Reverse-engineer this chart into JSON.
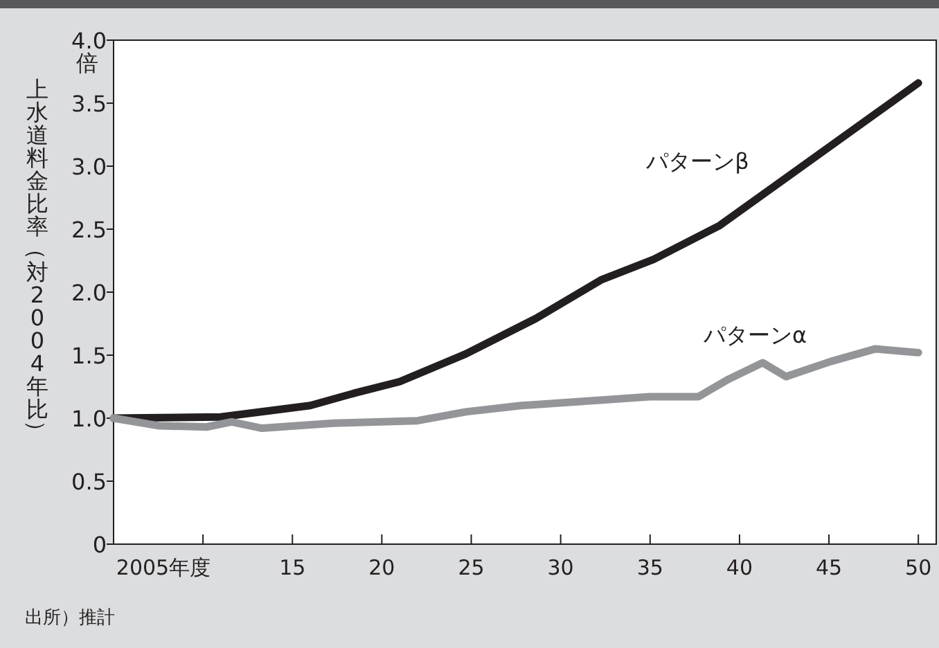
{
  "chart_data": {
    "type": "line",
    "ylabel": "上水道料金比率（対2004年比）",
    "xlim": [
      2005,
      2051
    ],
    "xticks": [
      {
        "value": 2005,
        "label": "2005年度"
      },
      {
        "value": 2010,
        "label": null
      },
      {
        "value": 2015,
        "label": "15"
      },
      {
        "value": 2020,
        "label": "20"
      },
      {
        "value": 2025,
        "label": "25"
      },
      {
        "value": 2030,
        "label": "30"
      },
      {
        "value": 2035,
        "label": "35"
      },
      {
        "value": 2040,
        "label": "40"
      },
      {
        "value": 2045,
        "label": "45"
      },
      {
        "value": 2050,
        "label": "50"
      }
    ],
    "ylim": [
      0,
      4
    ],
    "yticks": [
      0,
      {
        "value": 0.5,
        "label": "0.5"
      },
      {
        "value": 1,
        "label": "1.0"
      },
      {
        "value": 1.5,
        "label": "1.5"
      },
      {
        "value": 2,
        "label": "2.0"
      },
      {
        "value": 2.5,
        "label": "2.5"
      },
      {
        "value": 3,
        "label": "3.0"
      },
      {
        "value": 3.5,
        "label": "3.5"
      },
      {
        "value": 4,
        "label": "4.0"
      }
    ],
    "series": [
      {
        "name": "パターンβ",
        "color": "#231f20",
        "x": [
          2005,
          2011,
          2016,
          2018.5,
          2021,
          2024.7,
          2028.6,
          2032.3,
          2035.2,
          2038.9,
          2050
        ],
        "values": [
          1.0,
          1.01,
          1.1,
          1.2,
          1.29,
          1.51,
          1.79,
          2.1,
          2.26,
          2.53,
          3.66
        ]
      },
      {
        "name": "パターンα",
        "color": "#939598",
        "x": [
          2005,
          2007.5,
          2010.2,
          2011.6,
          2013.3,
          2017.3,
          2022,
          2024.7,
          2027.8,
          2035,
          2037.7,
          2039.4,
          2041.3,
          2042.6,
          2045.1,
          2047.6,
          2050
        ],
        "values": [
          1.0,
          0.94,
          0.93,
          0.97,
          0.92,
          0.96,
          0.98,
          1.05,
          1.1,
          1.17,
          1.17,
          1.31,
          1.44,
          1.33,
          1.45,
          1.55,
          1.52
        ]
      }
    ],
    "grid": false,
    "annotations": [
      "倍",
      "出所）推計"
    ]
  }
}
